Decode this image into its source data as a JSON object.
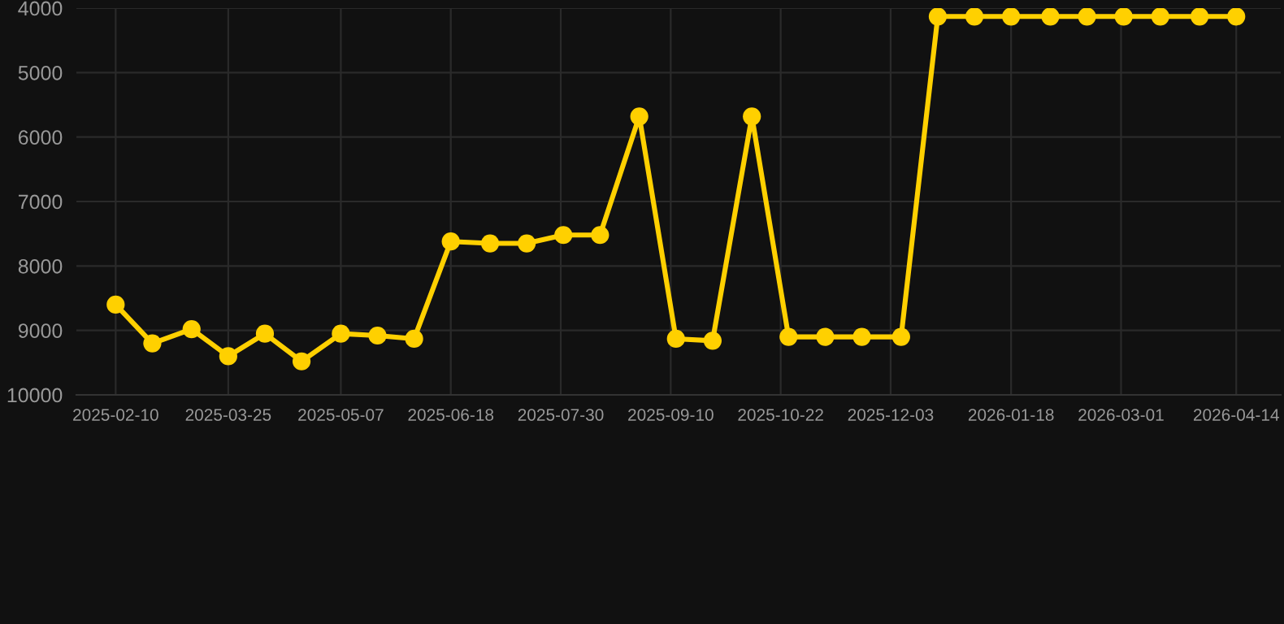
{
  "chart_data": {
    "type": "line",
    "x": [
      "2025-02-10",
      "2025-02-24",
      "2025-03-11",
      "2025-03-25",
      "2025-04-08",
      "2025-04-22",
      "2025-05-07",
      "2025-05-21",
      "2025-06-04",
      "2025-06-18",
      "2025-07-03",
      "2025-07-17",
      "2025-07-31",
      "2025-08-14",
      "2025-08-29",
      "2025-09-12",
      "2025-09-26",
      "2025-10-11",
      "2025-10-25",
      "2025-11-08",
      "2025-11-22",
      "2025-12-07",
      "2025-12-21",
      "2026-01-04",
      "2026-01-18",
      "2026-02-02",
      "2026-02-16",
      "2026-03-02",
      "2026-03-16",
      "2026-03-31",
      "2026-04-14"
    ],
    "series": [
      {
        "color": "#ffd000",
        "values": [
          8600,
          9200,
          8980,
          9400,
          9050,
          9480,
          9050,
          9080,
          9130,
          7620,
          7650,
          7650,
          7520,
          7520,
          5680,
          9130,
          9160,
          5680,
          9100,
          9100,
          9100,
          9100,
          4130,
          4130,
          4130,
          4130,
          4130,
          4130,
          4130,
          4130,
          4130
        ]
      }
    ],
    "xlim": [
      "2025-01-26",
      "2026-05-01"
    ],
    "xticks": [
      "2025-02-10",
      "2025-03-25",
      "2025-05-07",
      "2025-06-18",
      "2025-07-30",
      "2025-09-10",
      "2025-10-22",
      "2025-12-03",
      "2026-01-18",
      "2026-03-01",
      "2026-04-14"
    ],
    "ylim": [
      10000,
      4000
    ],
    "yticks": [
      4000,
      5000,
      6000,
      7000,
      8000,
      9000,
      10000
    ],
    "grid": true,
    "marker": "circle",
    "line_style": "solid"
  }
}
